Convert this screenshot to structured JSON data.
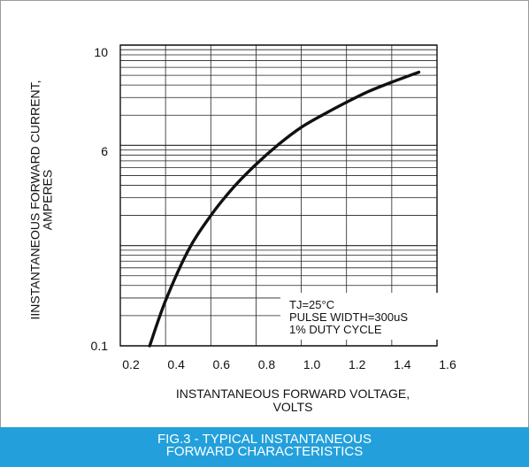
{
  "chart_data": {
    "type": "line",
    "xlabel": [
      "INSTANTANEOUS FORWARD VOLTAGE,",
      "VOLTS"
    ],
    "ylabel": [
      "IINSTANTANEOUS FORWARD CURRENT,",
      "AMPERES"
    ],
    "x_ticks": [
      "0.2",
      "0.4",
      "0.6",
      "0.8",
      "1.0",
      "1.2",
      "1.4",
      "1.6"
    ],
    "y_ticks": [
      "10",
      "6",
      "0.1"
    ],
    "xlim": [
      0.2,
      1.6
    ],
    "y_scale": "log (three equal decades)",
    "grid": true,
    "annotations": [
      "TJ=25°C",
      "PULSE WIDTH=300uS",
      "1% DUTY CYCLE"
    ],
    "series": [
      {
        "x": [
          0.33,
          0.4,
          0.5,
          0.6,
          0.7,
          0.8,
          0.9,
          1.0,
          1.1,
          1.2,
          1.3,
          1.4,
          1.52
        ],
        "y_decades_below_top": [
          3.0,
          2.55,
          2.05,
          1.7,
          1.42,
          1.19,
          0.99,
          0.82,
          0.69,
          0.57,
          0.46,
          0.37,
          0.27
        ]
      }
    ]
  },
  "caption": [
    "FIG.3 - TYPICAL INSTANTANEOUS",
    "FORWARD CHARACTERISTICS"
  ],
  "colors": {
    "caption_bg": "#23a0db",
    "curve": "#111111",
    "grid": "#222222"
  }
}
